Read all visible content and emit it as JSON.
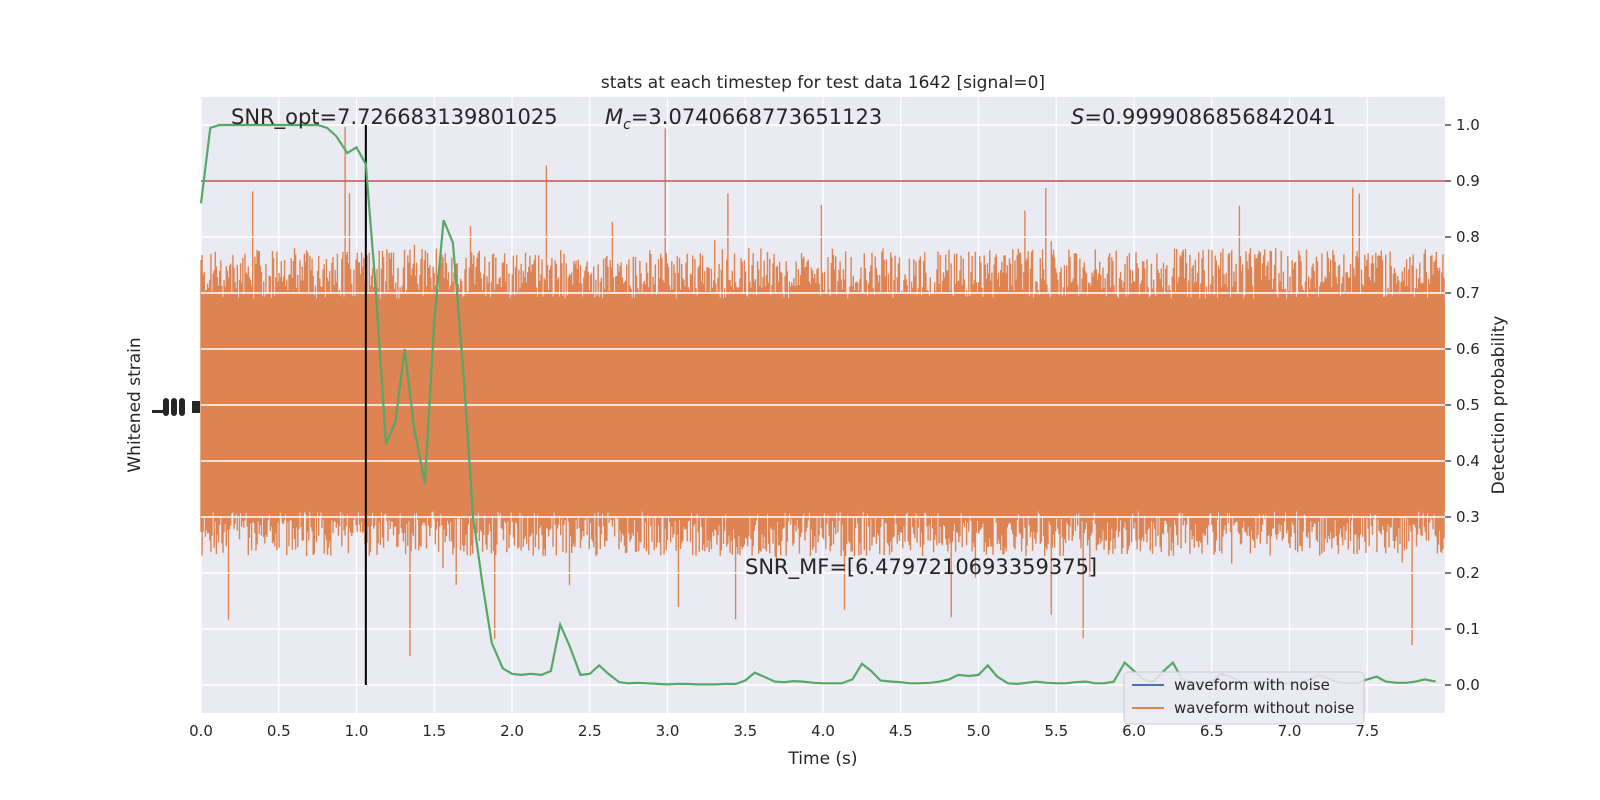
{
  "chart_data": {
    "type": "line",
    "title": "stats at each timestep for test data 1642 [signal=0]",
    "xlabel": "Time (s)",
    "ylabel_left": "Whitened strain",
    "ylabel_right": "Detection probability",
    "xlim": [
      0.0,
      8.0
    ],
    "ylim_right": [
      -0.05,
      1.05
    ],
    "x_ticks": [
      "0.0",
      "0.5",
      "1.0",
      "1.5",
      "2.0",
      "2.5",
      "3.0",
      "3.5",
      "4.0",
      "4.5",
      "5.0",
      "5.5",
      "6.0",
      "6.5",
      "7.0",
      "7.5"
    ],
    "x_tick_values": [
      0.0,
      0.5,
      1.0,
      1.5,
      2.0,
      2.5,
      3.0,
      3.5,
      4.0,
      4.5,
      5.0,
      5.5,
      6.0,
      6.5,
      7.0,
      7.5
    ],
    "y_right_ticks": [
      "0.0",
      "0.1",
      "0.2",
      "0.3",
      "0.4",
      "0.5",
      "0.6",
      "0.7",
      "0.8",
      "0.9",
      "1.0"
    ],
    "y_right_tick_values": [
      0.0,
      0.1,
      0.2,
      0.3,
      0.4,
      0.5,
      0.6,
      0.7,
      0.8,
      0.9,
      1.0
    ],
    "grid": true,
    "legend_position": "lower-right",
    "annotations": {
      "snr_opt": "SNR_opt=7.726683139801025",
      "mc_symbol": "M",
      "mc_subscript": "c",
      "mc_value": "=3.0740668773651123",
      "s_symbol": "S",
      "s_value": "=0.9999086856842041",
      "snr_mf": "SNR_MF=[6.4797210693359375]"
    },
    "threshold": {
      "value": 0.9,
      "color": "#c44e52"
    },
    "marker_time": 1.06,
    "series": [
      {
        "name": "waveform with noise",
        "color": "#4c72b0"
      },
      {
        "name": "waveform without noise",
        "color": "#dd8452"
      },
      {
        "color": "#55a868",
        "x": [
          0.0,
          0.06,
          0.12,
          0.19,
          0.25,
          0.31,
          0.37,
          0.44,
          0.5,
          0.56,
          0.62,
          0.69,
          0.75,
          0.81,
          0.87,
          0.94,
          1.0,
          1.06,
          1.12,
          1.19,
          1.25,
          1.31,
          1.37,
          1.44,
          1.5,
          1.56,
          1.62,
          1.69,
          1.75,
          1.81,
          1.87,
          1.94,
          2.0,
          2.06,
          2.12,
          2.19,
          2.25,
          2.31,
          2.37,
          2.44,
          2.5,
          2.56,
          2.62,
          2.69,
          2.75,
          2.81,
          2.87,
          2.94,
          3.0,
          3.06,
          3.12,
          3.19,
          3.25,
          3.31,
          3.37,
          3.44,
          3.5,
          3.56,
          3.62,
          3.69,
          3.75,
          3.81,
          3.87,
          3.94,
          4.0,
          4.06,
          4.12,
          4.19,
          4.25,
          4.31,
          4.37,
          4.44,
          4.5,
          4.56,
          4.62,
          4.69,
          4.75,
          4.81,
          4.87,
          4.94,
          5.0,
          5.06,
          5.12,
          5.19,
          5.25,
          5.31,
          5.37,
          5.44,
          5.5,
          5.56,
          5.62,
          5.69,
          5.75,
          5.81,
          5.87,
          5.94,
          6.0,
          6.06,
          6.12,
          6.19,
          6.25,
          6.31,
          6.37,
          6.44,
          6.5,
          6.56,
          6.62,
          6.69,
          6.75,
          6.81,
          6.87,
          6.94,
          7.0,
          7.06,
          7.12,
          7.19,
          7.25,
          7.31,
          7.37,
          7.44,
          7.5,
          7.56,
          7.62,
          7.69,
          7.75,
          7.81,
          7.87,
          7.94
        ],
        "values": [
          0.86,
          0.995,
          1.0,
          1.0,
          1.0,
          1.0,
          1.0,
          1.0,
          1.0,
          1.0,
          1.0,
          1.0,
          1.0,
          0.995,
          0.98,
          0.95,
          0.96,
          0.93,
          0.72,
          0.43,
          0.47,
          0.6,
          0.46,
          0.36,
          0.65,
          0.83,
          0.79,
          0.55,
          0.3,
          0.18,
          0.075,
          0.03,
          0.02,
          0.018,
          0.02,
          0.018,
          0.025,
          0.108,
          0.07,
          0.018,
          0.02,
          0.035,
          0.02,
          0.005,
          0.003,
          0.004,
          0.003,
          0.002,
          0.001,
          0.002,
          0.002,
          0.001,
          0.001,
          0.001,
          0.002,
          0.002,
          0.008,
          0.022,
          0.015,
          0.006,
          0.005,
          0.007,
          0.006,
          0.004,
          0.003,
          0.003,
          0.003,
          0.01,
          0.038,
          0.025,
          0.008,
          0.006,
          0.005,
          0.003,
          0.003,
          0.004,
          0.006,
          0.01,
          0.018,
          0.016,
          0.018,
          0.035,
          0.015,
          0.003,
          0.002,
          0.004,
          0.006,
          0.004,
          0.003,
          0.003,
          0.005,
          0.006,
          0.003,
          0.003,
          0.006,
          0.04,
          0.025,
          0.01,
          0.005,
          0.025,
          0.04,
          0.01,
          0.005,
          0.003,
          0.006,
          0.02,
          0.015,
          0.005,
          0.004,
          0.006,
          0.004,
          0.003,
          0.003,
          0.004,
          0.008,
          0.018,
          0.012,
          0.005,
          0.003,
          0.004,
          0.01,
          0.015,
          0.006,
          0.004,
          0.004,
          0.006,
          0.01,
          0.006
        ]
      }
    ],
    "noise_band": {
      "base_low": 0.31,
      "base_high": 0.69,
      "typical_low": 0.23,
      "typical_high": 0.78,
      "extreme_low": 0.0,
      "extreme_high": 1.0
    }
  }
}
